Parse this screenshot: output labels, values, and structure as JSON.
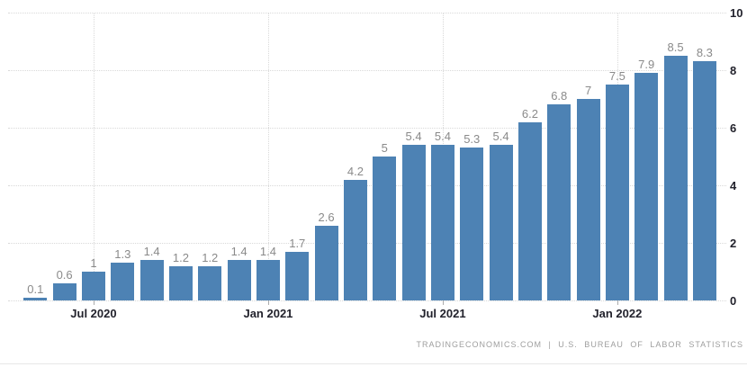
{
  "chart_data": {
    "type": "bar",
    "title": "",
    "xlabel": "",
    "ylabel": "",
    "ylim": [
      0,
      10
    ],
    "y_ticks": [
      0,
      2,
      4,
      6,
      8,
      10
    ],
    "y_axis_side": "right",
    "grid": "dotted",
    "legend_position": "none",
    "values": [
      0.1,
      0.6,
      1,
      1.3,
      1.4,
      1.2,
      1.2,
      1.4,
      1.4,
      1.7,
      2.6,
      4.2,
      5,
      5.4,
      5.4,
      5.3,
      5.4,
      6.2,
      6.8,
      7,
      7.5,
      7.9,
      8.5,
      8.3
    ],
    "bar_labels": [
      "0.1",
      "0.6",
      "1",
      "1.3",
      "1.4",
      "1.2",
      "1.2",
      "1.4",
      "1.4",
      "1.7",
      "2.6",
      "4.2",
      "5",
      "5.4",
      "5.4",
      "5.3",
      "5.4",
      "6.2",
      "6.8",
      "7",
      "7.5",
      "7.9",
      "8.5",
      "8.3"
    ],
    "x_ticks": [
      {
        "label": "Jul 2020",
        "bar_index": 2
      },
      {
        "label": "Jan 2021",
        "bar_index": 8
      },
      {
        "label": "Jul 2021",
        "bar_index": 14
      },
      {
        "label": "Jan 2022",
        "bar_index": 20
      }
    ],
    "colors": {
      "bar": "#4d82b4",
      "grid": "#d9d9d9",
      "bar_label": "#8a8a8a",
      "axis_label": "#22222c",
      "tick_mark": "#aaaaaa",
      "attribution": "#9e9e9e",
      "divider": "#e7e7e7",
      "background": "#ffffff"
    }
  },
  "footer": {
    "attribution": "TRADINGECONOMICS.COM | U.S. BUREAU OF LABOR STATISTICS"
  }
}
